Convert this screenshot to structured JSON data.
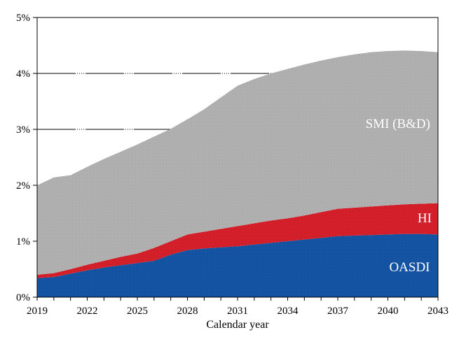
{
  "chart_data": {
    "type": "area",
    "stacked": true,
    "title": "",
    "xlabel": "Calendar year",
    "ylabel": "",
    "ylim": [
      0,
      5
    ],
    "xlim": [
      2019,
      2043
    ],
    "grid": "dashed horizontal lines at 3% and 4% only",
    "gridlines_pct": [
      3,
      4
    ],
    "legend_position": "inline white labels inside each band",
    "y_ticks": [
      "0%",
      "1%",
      "2%",
      "3%",
      "4%",
      "5%"
    ],
    "x_tick_labels": [
      2019,
      2022,
      2025,
      2028,
      2031,
      2034,
      2037,
      2040,
      2043
    ],
    "x_minor_tick_every_years": 1,
    "x": [
      2019,
      2020,
      2021,
      2022,
      2023,
      2024,
      2025,
      2026,
      2027,
      2028,
      2029,
      2030,
      2031,
      2032,
      2033,
      2034,
      2035,
      2036,
      2037,
      2038,
      2039,
      2040,
      2041,
      2042,
      2043
    ],
    "series": [
      {
        "name": "OASDI",
        "fill": "#1557a6",
        "speckle": "#0a3d7f",
        "values": [
          0.34,
          0.36,
          0.42,
          0.48,
          0.53,
          0.57,
          0.61,
          0.65,
          0.76,
          0.84,
          0.87,
          0.89,
          0.91,
          0.94,
          0.97,
          1.0,
          1.03,
          1.06,
          1.09,
          1.1,
          1.11,
          1.12,
          1.13,
          1.13,
          1.12
        ]
      },
      {
        "name": "HI",
        "fill": "#d7212b",
        "speckle": "#aa1020",
        "values": [
          0.06,
          0.07,
          0.08,
          0.1,
          0.12,
          0.15,
          0.17,
          0.23,
          0.24,
          0.28,
          0.3,
          0.33,
          0.36,
          0.38,
          0.4,
          0.41,
          0.43,
          0.46,
          0.49,
          0.5,
          0.51,
          0.52,
          0.53,
          0.54,
          0.56
        ]
      },
      {
        "name": "SMI (B&D)",
        "fill": "#ababab",
        "speckle": "#c9c9c9",
        "values": [
          1.6,
          1.71,
          1.68,
          1.75,
          1.82,
          1.88,
          1.95,
          1.99,
          2.01,
          2.06,
          2.19,
          2.35,
          2.51,
          2.58,
          2.63,
          2.67,
          2.7,
          2.71,
          2.71,
          2.74,
          2.76,
          2.76,
          2.75,
          2.73,
          2.7
        ]
      }
    ],
    "cumulative_totals_note": "stack sums: 2019=2.00%, 2027=3.01%, 2031=3.78%, 2033=4.00%, peak 4.41% ~2041, 2043=4.38%",
    "area_labels": [
      {
        "text": "SMI (B&D)",
        "year": 2040.6,
        "pct": 3.1,
        "color": "#ffffff"
      },
      {
        "text": "HI",
        "year": 2042.2,
        "pct": 1.41,
        "color": "#ffffff"
      },
      {
        "text": "OASDI",
        "year": 2041.3,
        "pct": 0.54,
        "color": "#ffffff"
      }
    ],
    "axis_color": "#000000",
    "background": "#ffffff"
  }
}
